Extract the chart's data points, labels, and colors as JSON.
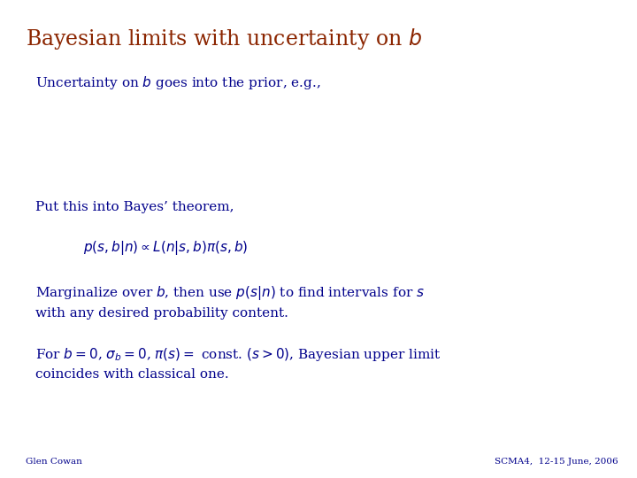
{
  "title": "Bayesian limits with uncertainty on $b$",
  "title_color": "#8B2500",
  "title_fontsize": 17,
  "body_color": "#00008B",
  "body_fontsize": 11,
  "formula_color": "#00008B",
  "footer_color": "#00008B",
  "footer_fontsize": 7.5,
  "background_color": "#FFFFFF",
  "line1": "Uncertainty on $b$ goes into the prior, e.g.,",
  "line2": "Put this into Bayes’ theorem,",
  "line3": "$p(s,b|n) \\propto L(n|s,b)\\pi(s,b)$",
  "line4": "Marginalize over $b$, then use $p(s|n)$ to find intervals for $s$\nwith any desired probability content.",
  "line5": "For $b = 0$, $\\sigma_b = 0$, $\\pi(s) = $ const. $(s > 0)$, Bayesian upper limit\ncoincides with classical one.",
  "footer_left": "Glen Cowan",
  "footer_right": "SCMA4,  12-15 June, 2006"
}
